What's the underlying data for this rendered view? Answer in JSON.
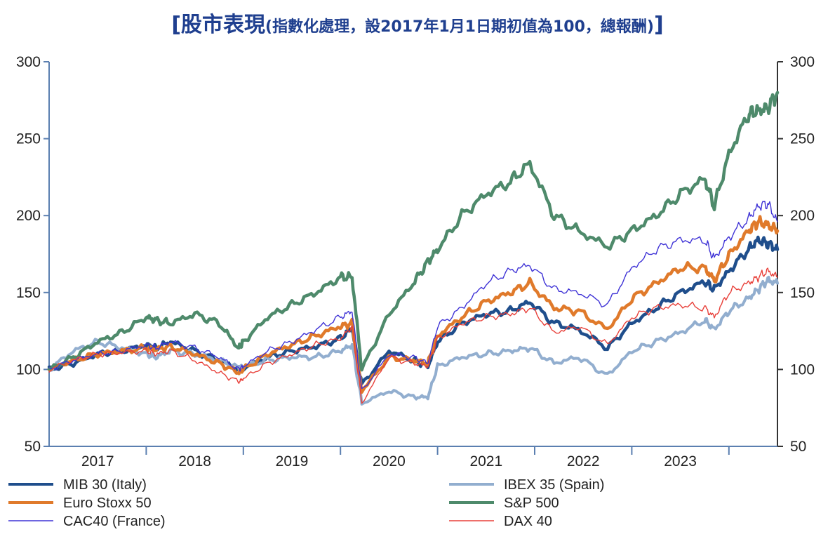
{
  "title": {
    "main": "股市表現",
    "sub": "(指數化處理，設2017年1月1日期初值為100，總報酬)",
    "open": "[",
    "close": "]"
  },
  "colors": {
    "title": "#1f3f8f",
    "axis": "#5b7fb0",
    "axis_right": "#333333"
  },
  "chart_data": {
    "type": "line",
    "title": "股市表現(指數化處理，設2017年1月1日期初值為100，總報酬)",
    "ylim": [
      50,
      300
    ],
    "y_ticks": [
      50,
      100,
      150,
      200,
      250,
      300
    ],
    "y_ticks_right": [
      50,
      100,
      150,
      200,
      250,
      300
    ],
    "xlim": [
      2017.0,
      2024.5
    ],
    "x_ticks": [
      {
        "label": "2017",
        "value": 2017.5
      },
      {
        "label": "2018",
        "value": 2018.5
      },
      {
        "label": "2019",
        "value": 2019.5
      },
      {
        "label": "2020",
        "value": 2020.5
      },
      {
        "label": "2021",
        "value": 2021.5
      },
      {
        "label": "2022",
        "value": 2022.5
      },
      {
        "label": "2023",
        "value": 2023.5
      }
    ],
    "x_dividers": [
      2018.0,
      2019.0,
      2020.0,
      2021.0,
      2022.0,
      2023.0,
      2024.0
    ],
    "grid": false,
    "legend_position": "bottom",
    "x": [
      2017.0,
      2017.25,
      2017.5,
      2017.75,
      2018.0,
      2018.1,
      2018.25,
      2018.5,
      2018.75,
      2018.95,
      2019.0,
      2019.25,
      2019.5,
      2019.75,
      2020.0,
      2020.12,
      2020.22,
      2020.5,
      2020.75,
      2020.9,
      2021.0,
      2021.25,
      2021.5,
      2021.75,
      2021.95,
      2022.2,
      2022.45,
      2022.75,
      2023.0,
      2023.25,
      2023.5,
      2023.75,
      2023.85,
      2024.0,
      2024.2,
      2024.3,
      2024.4,
      2024.5
    ],
    "series": [
      {
        "name": "MIB 30 (Italy)",
        "color": "#1f4e8c",
        "width": 4.5,
        "values": [
          100,
          104,
          110,
          112,
          116,
          114,
          118,
          112,
          106,
          100,
          101,
          108,
          112,
          115,
          120,
          127,
          90,
          112,
          106,
          102,
          118,
          130,
          136,
          138,
          144,
          130,
          126,
          114,
          130,
          140,
          150,
          157,
          152,
          164,
          178,
          184,
          182,
          178
        ]
      },
      {
        "name": "IBEX 35 (Spain)",
        "color": "#92aecf",
        "width": 4,
        "values": [
          100,
          112,
          118,
          114,
          110,
          108,
          112,
          110,
          106,
          101,
          102,
          106,
          108,
          108,
          112,
          116,
          78,
          86,
          82,
          82,
          102,
          108,
          110,
          112,
          114,
          104,
          108,
          96,
          112,
          118,
          124,
          132,
          126,
          138,
          146,
          152,
          158,
          156
        ]
      },
      {
        "name": "Euro Stoxx 50",
        "color": "#e07a2b",
        "width": 4.5,
        "values": [
          100,
          106,
          110,
          112,
          114,
          113,
          115,
          110,
          104,
          98,
          100,
          110,
          116,
          122,
          128,
          130,
          86,
          108,
          106,
          104,
          122,
          134,
          144,
          150,
          156,
          140,
          138,
          126,
          146,
          156,
          166,
          166,
          158,
          174,
          190,
          196,
          194,
          190
        ]
      },
      {
        "name": "S&P 500",
        "color": "#4e8a6b",
        "width": 4.5,
        "values": [
          100,
          108,
          118,
          124,
          134,
          132,
          130,
          136,
          130,
          114,
          118,
          134,
          142,
          150,
          160,
          160,
          100,
          136,
          156,
          170,
          178,
          200,
          214,
          222,
          234,
          200,
          190,
          180,
          190,
          200,
          214,
          224,
          206,
          240,
          266,
          268,
          270,
          280
        ]
      },
      {
        "name": "CAC40 (France)",
        "color": "#3f33d6",
        "width": 1.4,
        "values": [
          100,
          106,
          110,
          112,
          116,
          114,
          118,
          114,
          108,
          100,
          102,
          112,
          118,
          126,
          134,
          138,
          86,
          110,
          108,
          104,
          128,
          140,
          156,
          164,
          168,
          152,
          150,
          142,
          166,
          178,
          184,
          184,
          172,
          186,
          198,
          206,
          208,
          196
        ]
      },
      {
        "name": "DAX 40",
        "color": "#e8403a",
        "width": 1.4,
        "values": [
          100,
          106,
          110,
          111,
          112,
          110,
          112,
          106,
          98,
          92,
          94,
          104,
          110,
          116,
          120,
          128,
          78,
          108,
          104,
          102,
          120,
          130,
          134,
          136,
          140,
          124,
          128,
          116,
          134,
          140,
          142,
          140,
          134,
          150,
          156,
          160,
          164,
          160
        ]
      }
    ],
    "legend": [
      {
        "label": "MIB 30 (Italy)",
        "color": "#1f4e8c",
        "width": 4
      },
      {
        "label": "IBEX 35 (Spain)",
        "color": "#92aecf",
        "width": 4
      },
      {
        "label": "Euro Stoxx 50",
        "color": "#e07a2b",
        "width": 4
      },
      {
        "label": "S&P 500",
        "color": "#4e8a6b",
        "width": 4
      },
      {
        "label": "CAC40 (France)",
        "color": "#3f33d6",
        "width": 1.5
      },
      {
        "label": "DAX 40",
        "color": "#e8403a",
        "width": 1.5
      }
    ]
  }
}
